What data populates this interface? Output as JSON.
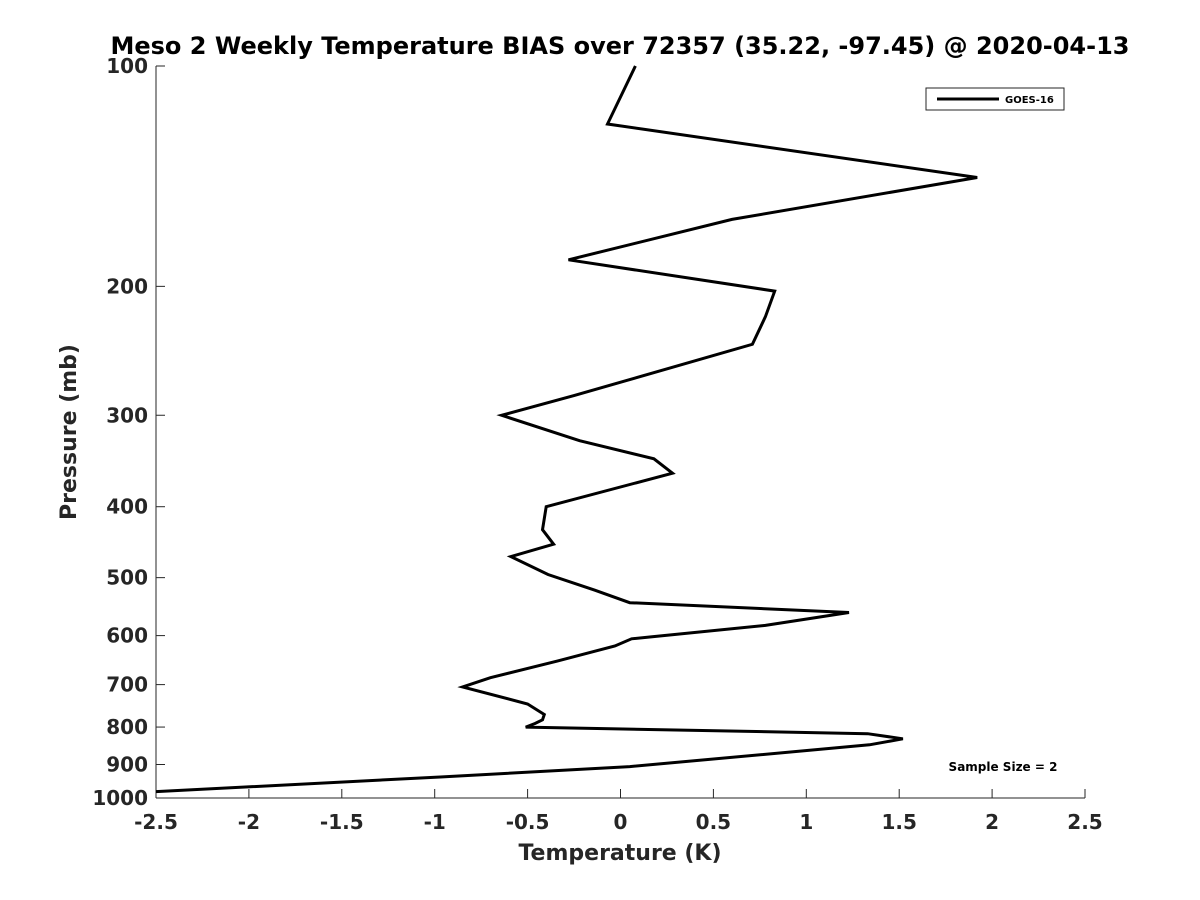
{
  "chart_data": {
    "type": "line",
    "title": "Meso 2 Weekly Temperature BIAS over 72357 (35.22, -97.45) @ 2020-04-13",
    "xlabel": "Temperature (K)",
    "ylabel": "Pressure (mb)",
    "xlim": [
      -2.5,
      2.5
    ],
    "ylim": [
      100,
      1000
    ],
    "y_scale": "log",
    "y_reversed": true,
    "x_ticks": [
      "-2.5",
      "-2",
      "-1.5",
      "-1",
      "-0.5",
      "0",
      "0.5",
      "1",
      "1.5",
      "2",
      "2.5"
    ],
    "y_ticks": [
      "100",
      "200",
      "300",
      "400",
      "500",
      "600",
      "700",
      "800",
      "900",
      "1000"
    ],
    "grid": false,
    "legend_position": "top-right",
    "annotation": "Sample Size = 2",
    "series": [
      {
        "name": "GOES-16",
        "color": "#000000",
        "points": [
          [
            0.08,
            100
          ],
          [
            -0.07,
            120
          ],
          [
            1.92,
            142
          ],
          [
            0.6,
            162
          ],
          [
            -0.28,
            184
          ],
          [
            0.83,
            203
          ],
          [
            0.78,
            220
          ],
          [
            0.71,
            240
          ],
          [
            -0.25,
            282
          ],
          [
            -0.64,
            300
          ],
          [
            -0.22,
            325
          ],
          [
            0.18,
            344
          ],
          [
            0.28,
            360
          ],
          [
            -0.4,
            400
          ],
          [
            -0.42,
            430
          ],
          [
            -0.36,
            450
          ],
          [
            -0.59,
            468
          ],
          [
            -0.39,
            495
          ],
          [
            -0.14,
            520
          ],
          [
            0.05,
            541
          ],
          [
            1.23,
            558
          ],
          [
            0.78,
            581
          ],
          [
            0.06,
            606
          ],
          [
            -0.03,
            620
          ],
          [
            -0.34,
            650
          ],
          [
            -0.7,
            685
          ],
          [
            -0.85,
            705
          ],
          [
            -0.5,
            744
          ],
          [
            -0.41,
            769
          ],
          [
            -0.42,
            782
          ],
          [
            -0.46,
            791
          ],
          [
            -0.51,
            800
          ],
          [
            1.33,
            817
          ],
          [
            1.52,
            830
          ],
          [
            1.34,
            846
          ],
          [
            0.05,
            906
          ],
          [
            -0.97,
            936
          ],
          [
            -2.5,
            980
          ]
        ]
      }
    ]
  }
}
